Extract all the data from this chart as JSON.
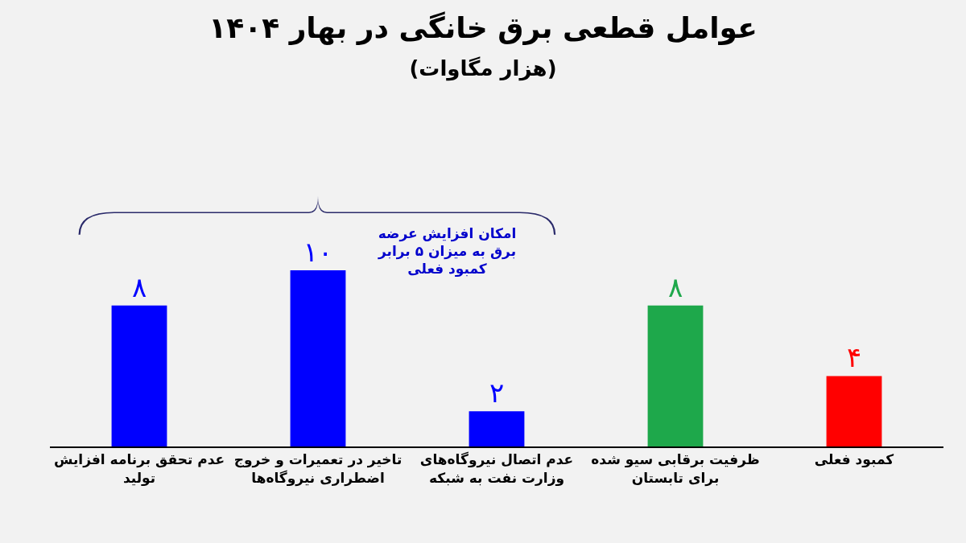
{
  "chart_data": {
    "type": "bar",
    "title": "عوامل قطعی برق خانگی در بهار ۱۴۰۴",
    "subtitle": "(هزار مگاوات)",
    "categories": [
      "عدم تحقق برنامه افزایش\nتولید",
      "تاخیر در تعمیرات و خروج\nاضطراری نیروگاه‌ها",
      "عدم اتصال نیروگاه‌های\nوزارت نفت به شبکه",
      "ظرفیت برقابی سیو شده\nبرای تابستان",
      "کمبود فعلی"
    ],
    "values": [
      8,
      10,
      2,
      8,
      4
    ],
    "colors": [
      "#0000ff",
      "#0000ff",
      "#0000ff",
      "#1ea84b",
      "#ff0000"
    ],
    "value_labels": [
      "۸",
      "۱۰",
      "۲",
      "۸",
      "۴"
    ],
    "annotations": [
      "امکان افزایش عرضه\nبرق به میزان ۵ برابر\nکمبود فعلی"
    ],
    "grid": false,
    "legend": false
  }
}
